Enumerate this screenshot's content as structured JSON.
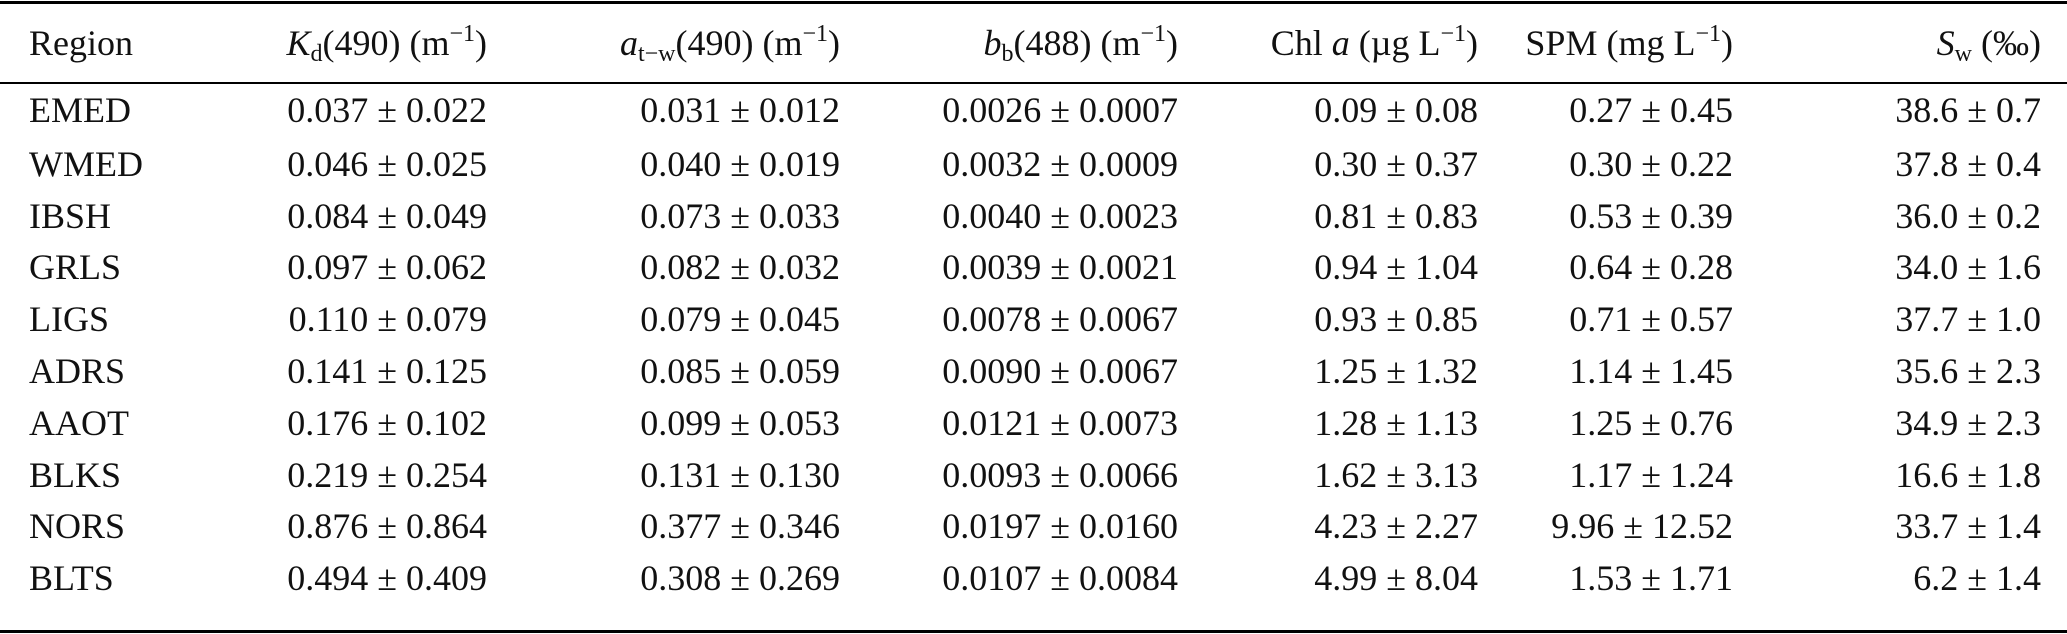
{
  "table": {
    "headers": [
      {
        "main": "Region"
      },
      {
        "var": "K",
        "sub": "d",
        "rest": "(490) (m",
        "sup": "−1",
        "close": ")"
      },
      {
        "var": "a",
        "sub": "t−w",
        "rest": "(490) (m",
        "sup": "−1",
        "close": ")"
      },
      {
        "var": "b",
        "sub": "b",
        "rest": "(488) (m",
        "sup": "−1",
        "close": ")"
      },
      {
        "pre": "Chl ",
        "var": "a",
        "rest": " (µg L",
        "sup": "−1",
        "close": ")"
      },
      {
        "pre": "SPM (mg L",
        "sup": "−1",
        "close": ")"
      },
      {
        "var": "S",
        "sub": "w",
        "rest": " (‰)"
      }
    ],
    "rows": [
      [
        "EMED",
        "0.037 ± 0.022",
        "0.031 ± 0.012",
        "0.0026 ± 0.0007",
        "0.09 ± 0.08",
        "0.27 ± 0.45",
        "38.6 ± 0.7"
      ],
      [
        "WMED",
        "0.046 ± 0.025",
        "0.040 ± 0.019",
        "0.0032 ± 0.0009",
        "0.30 ± 0.37",
        "0.30 ± 0.22",
        "37.8 ± 0.4"
      ],
      [
        "IBSH",
        "0.084 ± 0.049",
        "0.073 ± 0.033",
        "0.0040 ± 0.0023",
        "0.81 ± 0.83",
        "0.53 ± 0.39",
        "36.0 ± 0.2"
      ],
      [
        "GRLS",
        "0.097 ± 0.062",
        "0.082 ± 0.032",
        "0.0039 ± 0.0021",
        "0.94 ± 1.04",
        "0.64 ± 0.28",
        "34.0 ± 1.6"
      ],
      [
        "LIGS",
        "0.110 ± 0.079",
        "0.079 ± 0.045",
        "0.0078 ± 0.0067",
        "0.93 ± 0.85",
        "0.71 ± 0.57",
        "37.7 ± 1.0"
      ],
      [
        "ADRS",
        "0.141 ± 0.125",
        "0.085 ± 0.059",
        "0.0090 ± 0.0067",
        "1.25 ± 1.32",
        "1.14 ± 1.45",
        "35.6 ± 2.3"
      ],
      [
        "AAOT",
        "0.176 ± 0.102",
        "0.099 ± 0.053",
        "0.0121 ± 0.0073",
        "1.28 ± 1.13",
        "1.25 ± 0.76",
        "34.9 ± 2.3"
      ],
      [
        "BLKS",
        "0.219 ± 0.254",
        "0.131 ± 0.130",
        "0.0093 ± 0.0066",
        "1.62 ± 3.13",
        "1.17 ± 1.24",
        "16.6 ± 1.8"
      ],
      [
        "NORS",
        "0.876 ± 0.864",
        "0.377 ± 0.346",
        "0.0197 ± 0.0160",
        "4.23 ± 2.27",
        "9.96 ± 12.52",
        "33.7 ± 1.4"
      ],
      [
        "BLTS",
        "0.494 ± 0.409",
        "0.308 ± 0.269",
        "0.0107 ± 0.0084",
        "4.99 ± 8.04",
        "1.53 ± 1.71",
        "6.2 ± 1.4"
      ]
    ]
  }
}
